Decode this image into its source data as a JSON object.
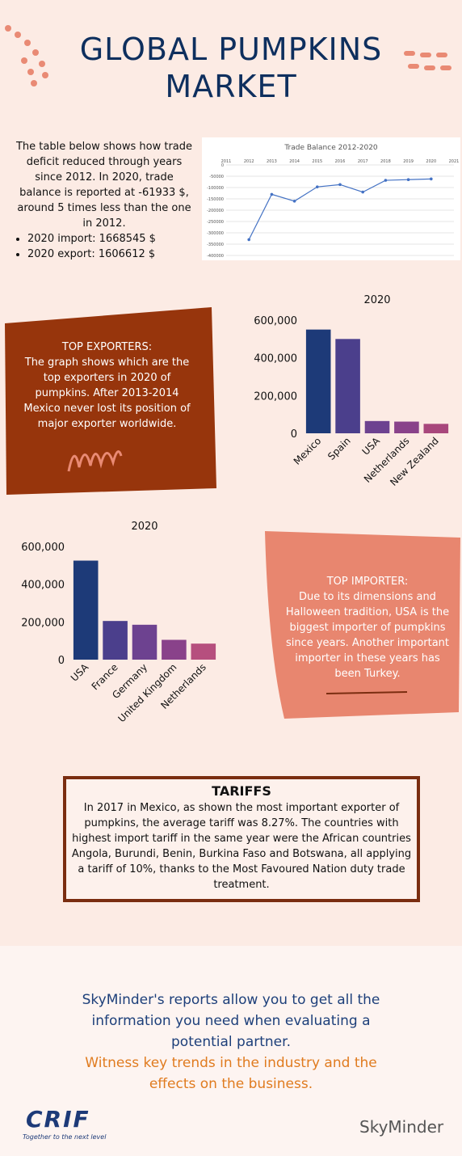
{
  "title": "GLOBAL PUMPKINS MARKET",
  "intro": {
    "text": "The table below shows how trade deficit reduced through years since 2012. In 2020, trade balance is reported at -61933 $, around 5 times less than the one in 2012.",
    "bullets": [
      "2020 import: 1668545 $",
      "2020 export: 1606612 $"
    ]
  },
  "exporters": {
    "heading": "TOP EXPORTERS:",
    "text": "The graph shows which are the top exporters in 2020 of pumpkins. After 2013-2014 Mexico never lost its position of major exporter worldwide."
  },
  "importers": {
    "heading": "TOP IMPORTER:",
    "text": "Due to its dimensions and Halloween tradition, USA is the biggest importer of pumpkins since years. Another important importer in these years has been Turkey."
  },
  "tariffs": {
    "heading": "TARIFFS",
    "text": "In 2017 in Mexico, as shown the most important exporter of pumpkins, the average tariff was 8.27%. The countries with highest import tariff in the same year were the African countries Angola, Burundi, Benin, Burkina Faso and Botswana, all applying a tariff of 10%, thanks to the Most Favoured Nation duty trade treatment."
  },
  "footer": {
    "line1": "SkyMinder's reports allow you to get all the information you need when evaluating a potential partner.",
    "line2": "Witness key trends in the industry and the effects on the business.",
    "logo_left": "CRIF",
    "tagline": "Together to the next level",
    "logo_right": "SkyMinder"
  },
  "chart_data": [
    {
      "type": "line",
      "title": "Trade Balance 2012-2020",
      "x": [
        2012,
        2013,
        2014,
        2015,
        2016,
        2017,
        2018,
        2019,
        2020
      ],
      "values": [
        -330000,
        -130000,
        -160000,
        -97000,
        -87000,
        -120000,
        -68000,
        -65000,
        -61933
      ],
      "color": "#4472c4",
      "xlim": [
        2011,
        2021
      ],
      "xticks": [
        2011,
        2012,
        2013,
        2014,
        2015,
        2016,
        2017,
        2018,
        2019,
        2020,
        2021
      ],
      "ylim": [
        -400000,
        0
      ],
      "yticks": [
        0,
        -50000,
        -100000,
        -150000,
        -200000,
        -250000,
        -300000,
        -350000,
        -400000
      ],
      "grid": true
    },
    {
      "type": "bar",
      "title": "2020",
      "categories": [
        "Mexico",
        "Spain",
        "USA",
        "Netherlands",
        "New Zealand"
      ],
      "values": [
        550000,
        500000,
        65000,
        62000,
        50000
      ],
      "colors": [
        "#1d3a78",
        "#4b3f8c",
        "#6d4290",
        "#89428a",
        "#a8477c"
      ],
      "ylim": [
        0,
        600000
      ],
      "yticks": [
        0,
        {
          "value": 200000,
          "label": "200,000"
        },
        {
          "value": 400000,
          "label": "400,000"
        },
        {
          "value": 600000,
          "label": "600,000"
        }
      ]
    },
    {
      "type": "bar",
      "title": "2020",
      "categories": [
        "USA",
        "France",
        "Germany",
        "United Kingdom",
        "Netherlands"
      ],
      "values": [
        525000,
        205000,
        185000,
        105000,
        85000
      ],
      "colors": [
        "#1d3a78",
        "#4b3f8c",
        "#6d4290",
        "#89428a",
        "#b64f7e"
      ],
      "ylim": [
        0,
        600000
      ],
      "yticks": [
        0,
        {
          "value": 200000,
          "label": "200,000"
        },
        {
          "value": 400000,
          "label": "400,000"
        },
        {
          "value": 600000,
          "label": "600,000"
        }
      ]
    }
  ]
}
